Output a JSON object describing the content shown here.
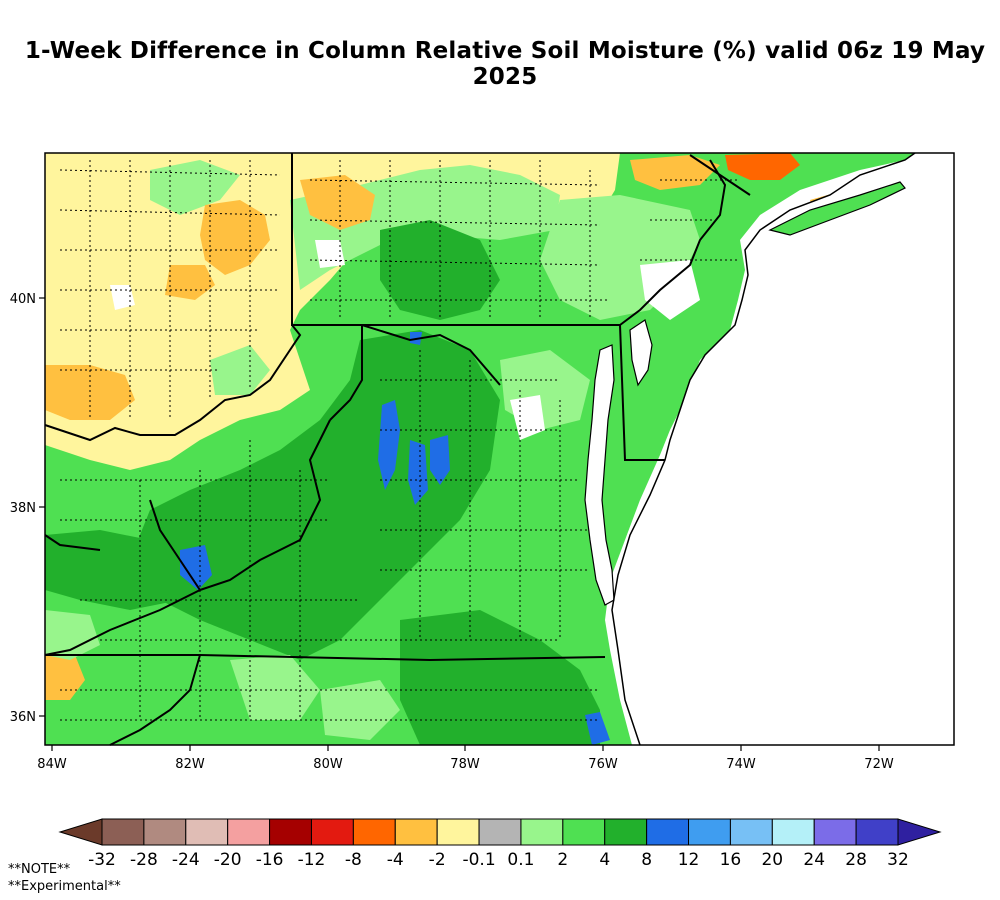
{
  "title": "1-Week Difference in Column Relative Soil Moisture (%) valid 06z 19 May 2025",
  "map": {
    "lat_labels": [
      "40N",
      "38N",
      "36N"
    ],
    "lon_labels": [
      "84W",
      "82W",
      "80W",
      "78W",
      "76W",
      "74W",
      "72W"
    ]
  },
  "colorbar": {
    "colors": [
      "#6b3a2a",
      "#8c5f55",
      "#b08a80",
      "#e0bdb5",
      "#f4a0a0",
      "#a50000",
      "#e31a10",
      "#ff6600",
      "#ffc040",
      "#fff59d",
      "#b4b4b4",
      "#98f58c",
      "#4fe052",
      "#22b02c",
      "#1f6de6",
      "#3f9df0",
      "#77c0f5",
      "#b4f0f8",
      "#7b6ce8",
      "#4040c8",
      "#2f20a0"
    ],
    "labels": [
      "-32",
      "-28",
      "-24",
      "-20",
      "-16",
      "-12",
      "-8",
      "-4",
      "-2",
      "-0.1",
      "0.1",
      "2",
      "4",
      "8",
      "12",
      "16",
      "20",
      "24",
      "28",
      "32"
    ]
  },
  "notes": [
    "**NOTE**",
    "**Experimental**"
  ]
}
